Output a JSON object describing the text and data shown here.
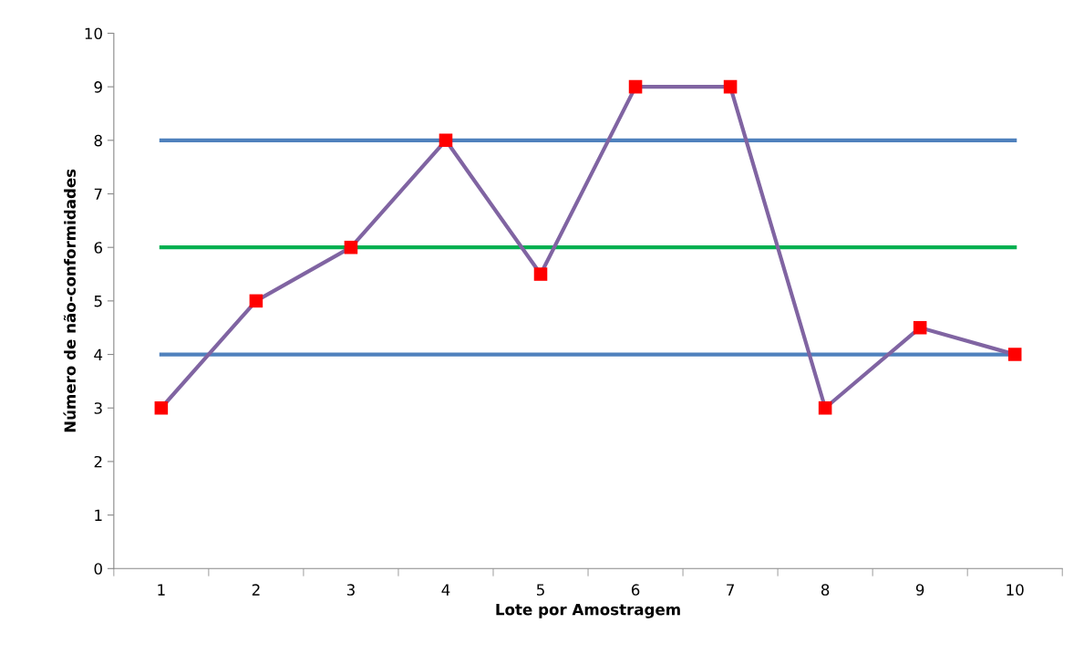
{
  "chart_data": {
    "type": "line",
    "xlabel": "Lote por Amostragem",
    "ylabel": "Número de não-conformidades",
    "categories": [
      "1",
      "2",
      "3",
      "4",
      "5",
      "6",
      "7",
      "8",
      "9",
      "10"
    ],
    "series": [
      {
        "color": "#4f81bd",
        "marker": "none",
        "values": [
          8,
          8,
          8,
          8,
          8,
          8,
          8,
          8,
          8,
          8
        ]
      },
      {
        "color": "#00b050",
        "marker": "none",
        "values": [
          6,
          6,
          6,
          6,
          6,
          6,
          6,
          6,
          6,
          6
        ]
      },
      {
        "color": "#4f81bd",
        "marker": "none",
        "values": [
          4,
          4,
          4,
          4,
          4,
          4,
          4,
          4,
          4,
          4
        ]
      },
      {
        "color": "#8064a2",
        "marker": "square",
        "colors": [
          "#ff0000",
          "#ff0000",
          "#ff0000",
          "#ff0000",
          "#ff0000",
          "#ff0000",
          "#ff0000",
          "#ff0000",
          "#ff0000",
          "#ff0000"
        ],
        "values": [
          3,
          5,
          6,
          8,
          5.5,
          9,
          9,
          3,
          4.5,
          4
        ]
      }
    ],
    "ylim": [
      0,
      10
    ],
    "yticks": [
      0,
      1,
      2,
      3,
      4,
      5,
      6,
      7,
      8,
      9,
      10
    ],
    "grid": false
  }
}
